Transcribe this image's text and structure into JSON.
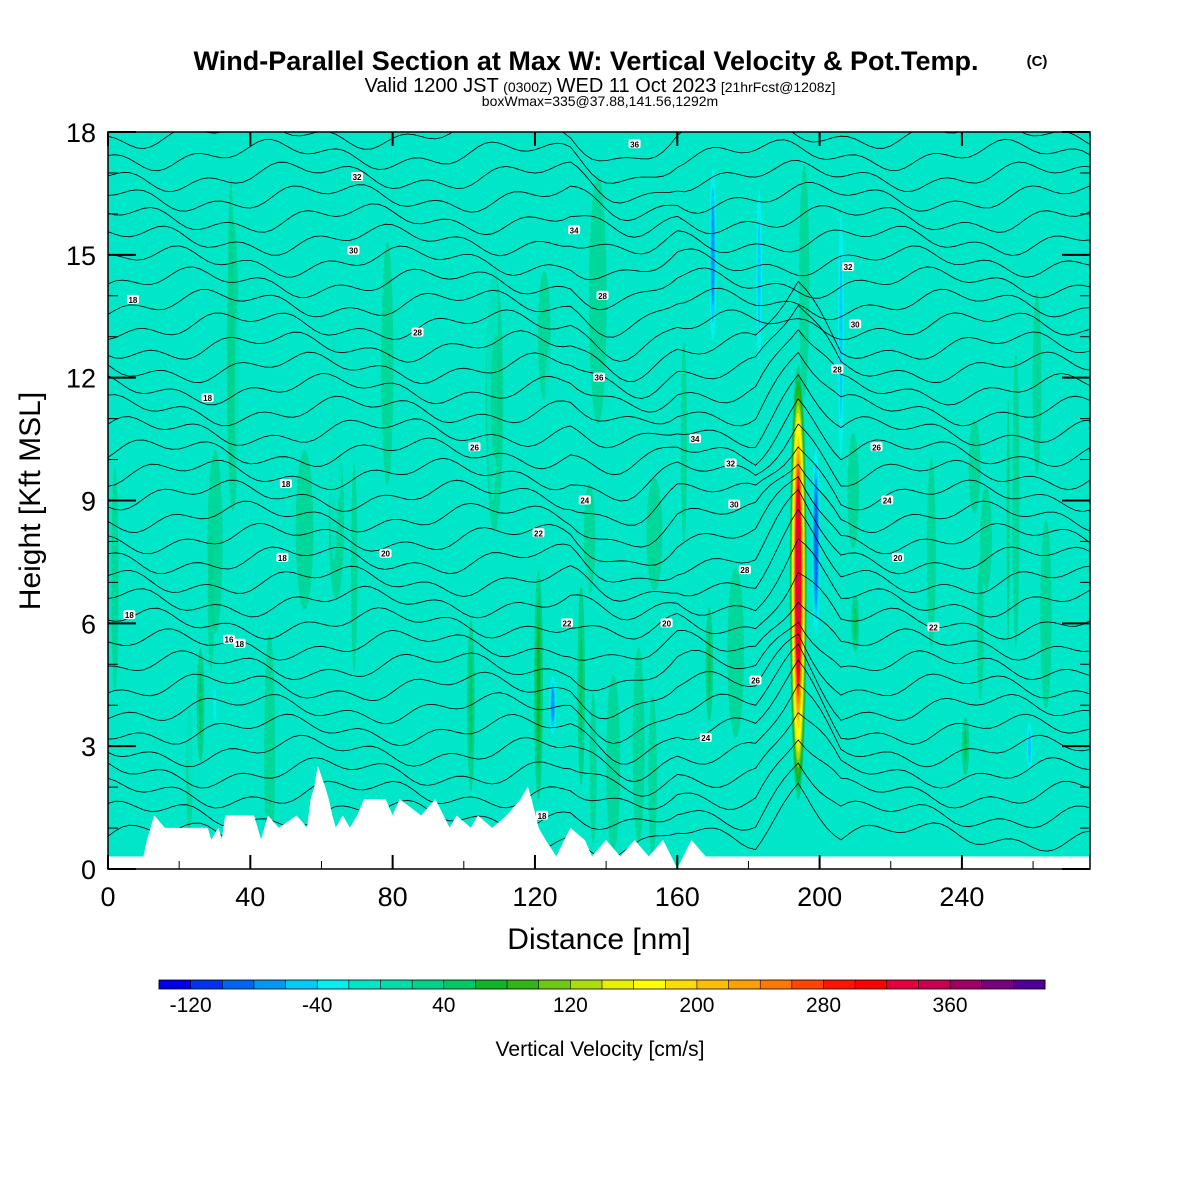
{
  "header": {
    "title": "Wind-Parallel Section at Max W: Vertical Velocity & Pot.Temp.",
    "copyright": "(C)",
    "valid_prefix": "Valid 1200 JST",
    "valid_utc": "(0300Z)",
    "valid_date": "WED 11 Oct 2023",
    "forecast": "[21hrFcst@1208z]",
    "boxmax": "boxWmax=335@37.88,141.56,1292m"
  },
  "chart_data": {
    "type": "heatmap",
    "title": "Wind-Parallel Section at Max W: Vertical Velocity & Pot.Temp.",
    "xlabel": "Distance [nm]",
    "ylabel": "Height [Kft MSL]",
    "xlim": [
      0,
      276
    ],
    "ylim": [
      0,
      18
    ],
    "x_ticks": [
      0,
      40,
      80,
      120,
      160,
      200,
      240
    ],
    "y_ticks": [
      0,
      3,
      6,
      9,
      12,
      15,
      18
    ],
    "field_units": "cm/s",
    "background_w": 5,
    "w_features": [
      {
        "x": 194,
        "z_bottom": 1.5,
        "z_top": 12.5,
        "w_max": 335
      },
      {
        "x": 199,
        "z_bottom": 5,
        "z_top": 11,
        "w_max": -90
      },
      {
        "x": 206,
        "z_bottom": 8,
        "z_top": 18,
        "w_max": -55
      },
      {
        "x": 170,
        "z_bottom": 12,
        "z_top": 18,
        "w_max": -80
      },
      {
        "x": 121,
        "z_bottom": 1,
        "z_top": 8,
        "w_max": 60
      },
      {
        "x": 125,
        "z_bottom": 3,
        "z_top": 5,
        "w_max": -70
      },
      {
        "x": 133,
        "z_bottom": 1,
        "z_top": 8,
        "w_max": 45
      },
      {
        "x": 102,
        "z_bottom": 1,
        "z_top": 7,
        "w_max": 50
      },
      {
        "x": 26,
        "z_bottom": 2,
        "z_top": 6,
        "w_max": 40
      },
      {
        "x": 30,
        "z_bottom": 3,
        "z_top": 5,
        "w_max": -40
      },
      {
        "x": 169,
        "z_bottom": 3,
        "z_top": 7,
        "w_max": 40
      },
      {
        "x": 183,
        "z_bottom": 11,
        "z_top": 18,
        "w_max": -50
      },
      {
        "x": 210,
        "z_bottom": 5,
        "z_top": 7,
        "w_max": 40
      },
      {
        "x": 241,
        "z_bottom": 2,
        "z_top": 4,
        "w_max": 40
      },
      {
        "x": 259,
        "z_bottom": 2,
        "z_top": 4,
        "w_max": -45
      },
      {
        "x": 253,
        "z_bottom": 1,
        "z_top": 16,
        "w_max": 25
      }
    ],
    "theta_contours_degC": [
      14,
      16,
      18,
      20,
      22,
      24,
      26,
      28,
      30,
      32,
      34,
      36
    ],
    "contour_labels": [
      "18",
      "18",
      "18",
      "18",
      "18",
      "18",
      "16",
      "18",
      "20",
      "22",
      "24",
      "26",
      "28",
      "30",
      "32",
      "34",
      "36",
      "20",
      "22",
      "24",
      "26",
      "28",
      "30",
      "32",
      "34",
      "36",
      "28",
      "20",
      "22",
      "24",
      "26",
      "28",
      "30",
      "32"
    ],
    "terrain_profile": [
      [
        0,
        0.3
      ],
      [
        10,
        0.3
      ],
      [
        11,
        0.7
      ],
      [
        13,
        1.3
      ],
      [
        16,
        1.0
      ],
      [
        22,
        1.0
      ],
      [
        28,
        1.0
      ],
      [
        29,
        0.7
      ],
      [
        31,
        1.0
      ],
      [
        32,
        0.7
      ],
      [
        33,
        1.3
      ],
      [
        41,
        1.3
      ],
      [
        43,
        0.7
      ],
      [
        45,
        1.3
      ],
      [
        48,
        1.0
      ],
      [
        53,
        1.3
      ],
      [
        56,
        1.0
      ],
      [
        57,
        1.7
      ],
      [
        58,
        2.0
      ],
      [
        59,
        2.5
      ],
      [
        61,
        2.0
      ],
      [
        62,
        1.7
      ],
      [
        63,
        1.3
      ],
      [
        64,
        1.0
      ],
      [
        66,
        1.3
      ],
      [
        68,
        1.0
      ],
      [
        70,
        1.3
      ],
      [
        72,
        1.7
      ],
      [
        78,
        1.7
      ],
      [
        80,
        1.3
      ],
      [
        82,
        1.7
      ],
      [
        88,
        1.3
      ],
      [
        92,
        1.7
      ],
      [
        96,
        1.0
      ],
      [
        98,
        1.3
      ],
      [
        102,
        1.0
      ],
      [
        104,
        1.3
      ],
      [
        108,
        1.0
      ],
      [
        112,
        1.3
      ],
      [
        116,
        1.7
      ],
      [
        118,
        2.0
      ],
      [
        119,
        1.7
      ],
      [
        121,
        1.0
      ],
      [
        123,
        0.7
      ],
      [
        126,
        0.3
      ],
      [
        130,
        1.0
      ],
      [
        134,
        0.7
      ],
      [
        136,
        0.3
      ],
      [
        140,
        0.7
      ],
      [
        144,
        0.3
      ],
      [
        148,
        0.7
      ],
      [
        152,
        0.3
      ],
      [
        156,
        0.7
      ],
      [
        160,
        0.0
      ],
      [
        164,
        0.7
      ],
      [
        168,
        0.3
      ],
      [
        276,
        0.3
      ]
    ],
    "colorbar": {
      "label": "Vertical Velocity [cm/s]",
      "ticks": [
        "-120",
        "-40",
        "40",
        "120",
        "200",
        "280",
        "360"
      ],
      "min": -140,
      "step": 20,
      "colors": [
        "#0000e6",
        "#0033f0",
        "#0066f0",
        "#0099f0",
        "#00ccf5",
        "#00f0f0",
        "#00e6c8",
        "#00dcaa",
        "#00d28c",
        "#00c864",
        "#0fb428",
        "#32b414",
        "#6ec814",
        "#aade0a",
        "#e6f000",
        "#ffff00",
        "#ffdc00",
        "#ffbe00",
        "#ffa000",
        "#ff7800",
        "#ff4600",
        "#ff1400",
        "#ff0000",
        "#e6003c",
        "#c80050",
        "#a00064",
        "#780078",
        "#500096"
      ]
    }
  }
}
